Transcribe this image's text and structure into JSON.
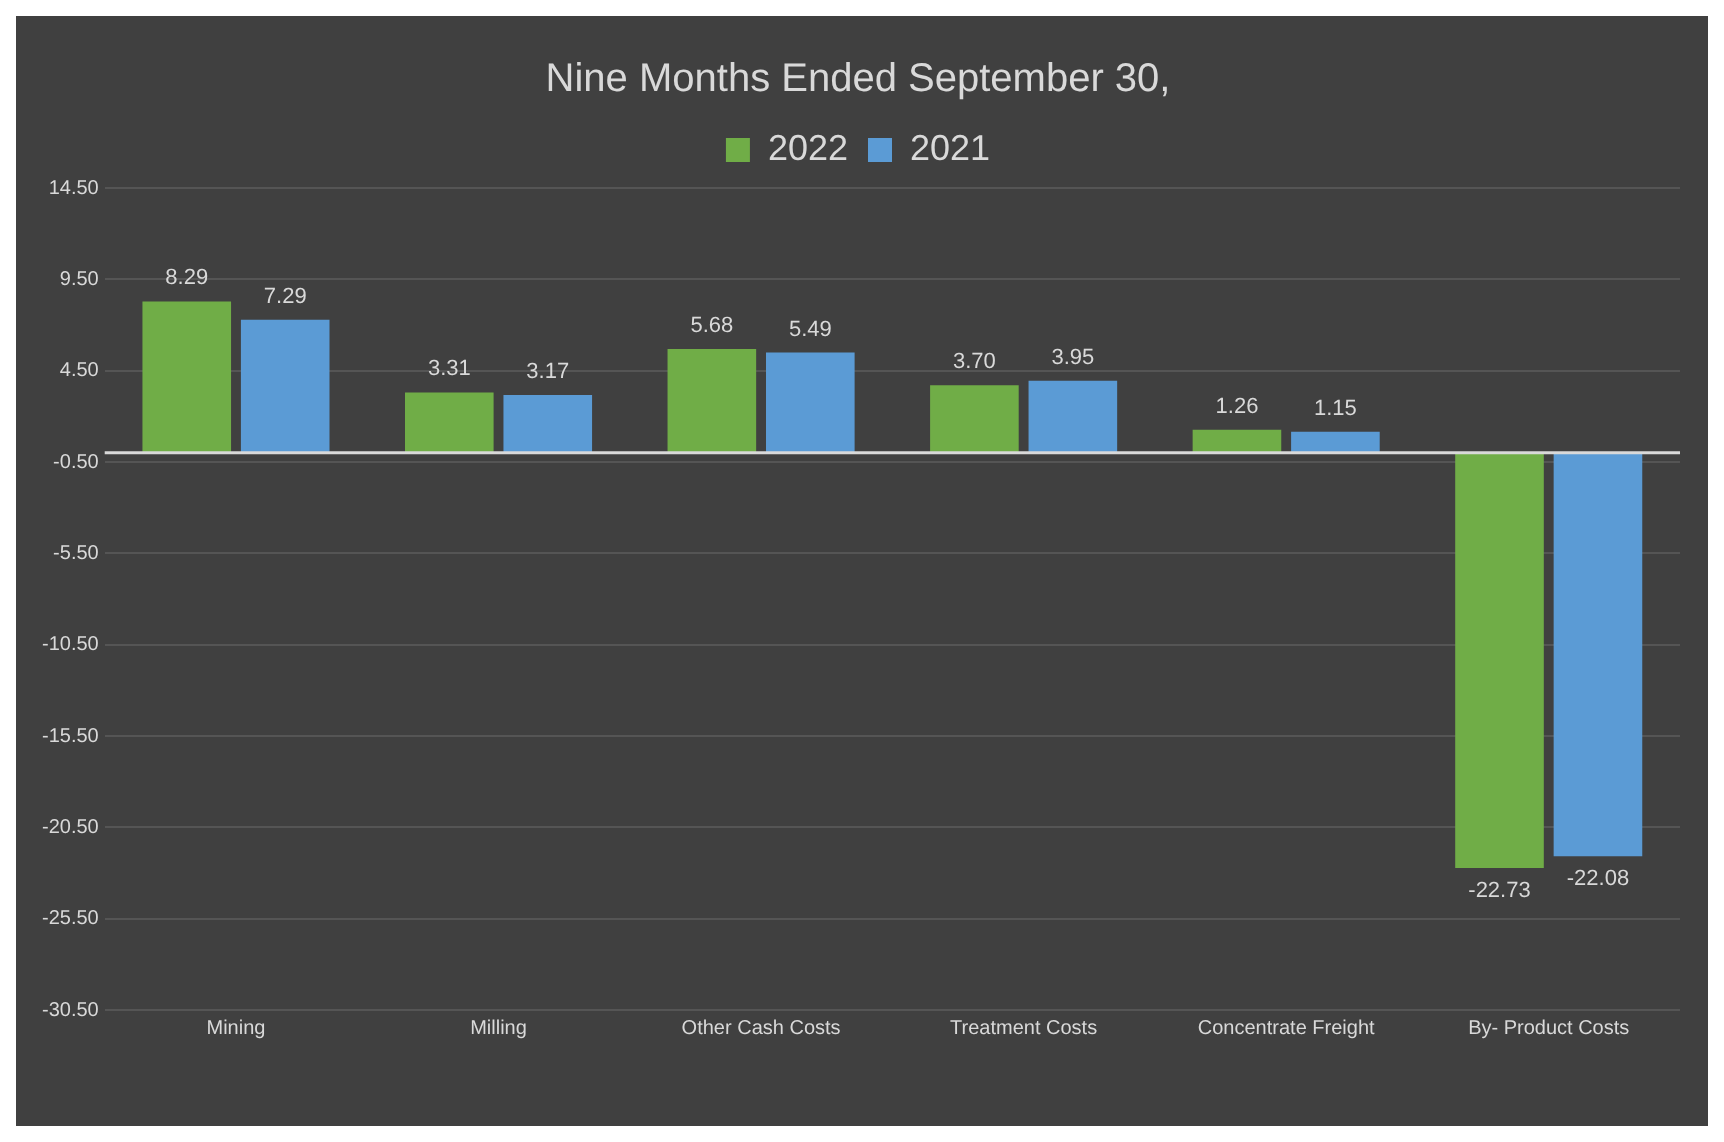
{
  "chart_data": {
    "type": "bar",
    "title": "Nine Months Ended September 30,",
    "categories": [
      "Mining",
      "Milling",
      "Other Cash Costs",
      "Treatment Costs",
      "Concentrate Freight",
      "By- Product Costs"
    ],
    "series": [
      {
        "name": "2022",
        "color": "#70ad47",
        "values": [
          8.29,
          3.31,
          5.68,
          3.7,
          1.26,
          -22.73
        ],
        "value_labels": [
          "8.29",
          "3.31",
          "5.68",
          "3.70",
          "1.26",
          "-22.73"
        ]
      },
      {
        "name": "2021",
        "color": "#5b9bd5",
        "values": [
          7.29,
          3.17,
          5.49,
          3.95,
          1.15,
          -22.08
        ],
        "value_labels": [
          "7.29",
          "3.17",
          "5.49",
          "3.95",
          "1.15",
          "-22.08"
        ]
      }
    ],
    "ylim": [
      -30.5,
      14.5
    ],
    "yticks": [
      {
        "value": -30.5,
        "label": "-30.50"
      },
      {
        "value": -25.5,
        "label": "-25.50"
      },
      {
        "value": -20.5,
        "label": "-20.50"
      },
      {
        "value": -15.5,
        "label": "-15.50"
      },
      {
        "value": -10.5,
        "label": "-10.50"
      },
      {
        "value": -5.5,
        "label": "-5.50"
      },
      {
        "value": -0.5,
        "label": "-0.50"
      },
      {
        "value": 4.5,
        "label": "4.50"
      },
      {
        "value": 9.5,
        "label": "9.50"
      },
      {
        "value": 14.5,
        "label": "14.50"
      }
    ],
    "grid": "y",
    "legend": "top"
  }
}
